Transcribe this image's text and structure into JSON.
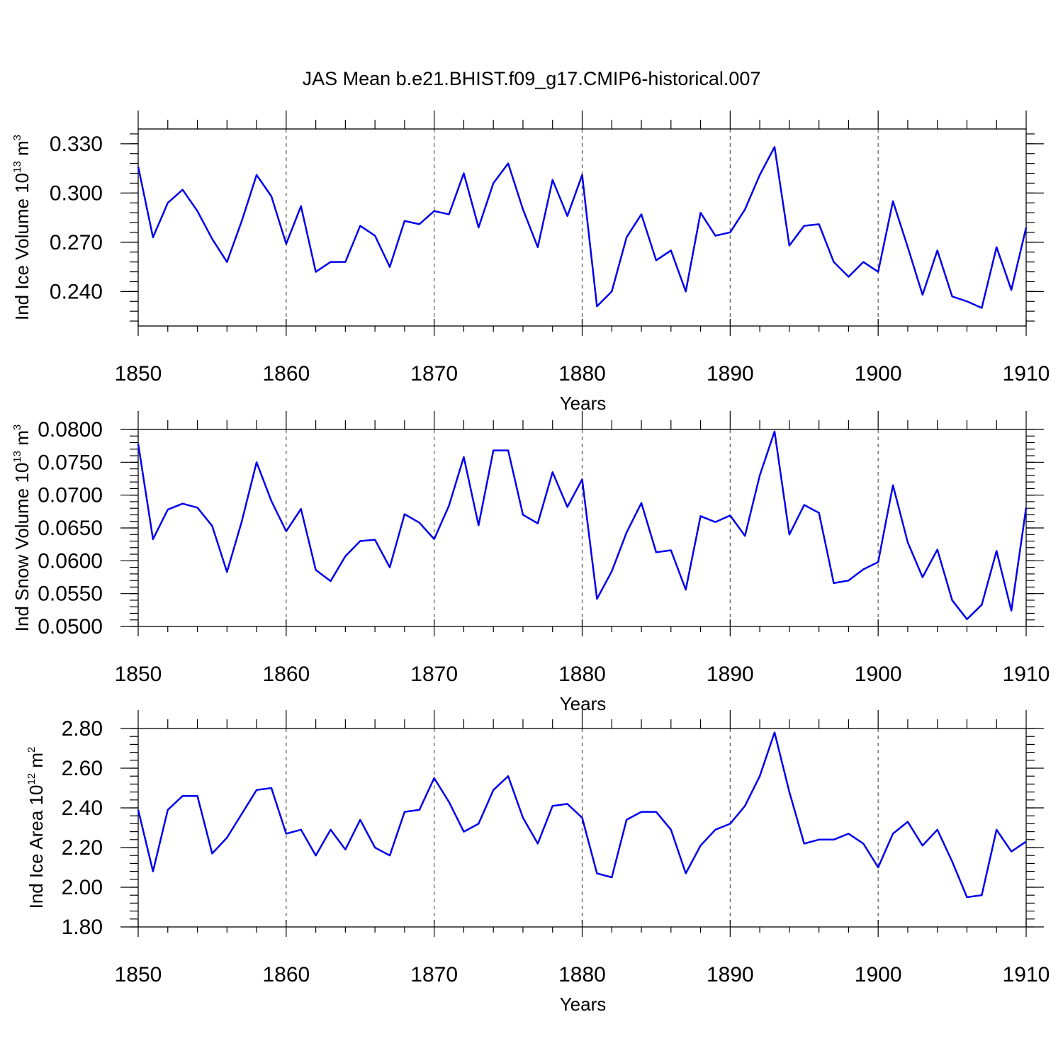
{
  "figure_title": "JAS Mean b.e21.BHIST.f09_g17.CMIP6-historical.007",
  "colors": {
    "line": "#0000ee",
    "axis": "#000000",
    "grid": "#555555"
  },
  "chart_data": [
    {
      "id": "ice-volume",
      "type": "line",
      "title": "JAS Mean b.e21.BHIST.f09_g17.CMIP6-historical.007",
      "xlabel": "Years",
      "ylabel": {
        "main": "Ind Ice Volume 10",
        "exp": "13",
        "unit": " m",
        "unit_exp": "3"
      },
      "xlim": [
        1850,
        1910
      ],
      "ylim": [
        0.219,
        0.339
      ],
      "x_ticks": [
        1850,
        1860,
        1870,
        1880,
        1890,
        1900,
        1910
      ],
      "x_tick_labels": [
        "1850",
        "1860",
        "1870",
        "1880",
        "1890",
        "1900",
        "1910"
      ],
      "y_ticks": [
        0.24,
        0.27,
        0.3,
        0.33
      ],
      "y_tick_labels": [
        "0.240",
        "0.270",
        "0.300",
        "0.330"
      ],
      "y_minor_step": 0.006,
      "grid_x": [
        1860,
        1870,
        1880,
        1890,
        1900
      ],
      "series": [
        {
          "name": "Ind Ice Volume",
          "x_start": 1850,
          "values": [
            0.316,
            0.273,
            0.294,
            0.302,
            0.289,
            0.272,
            0.258,
            0.283,
            0.311,
            0.298,
            0.269,
            0.292,
            0.252,
            0.258,
            0.258,
            0.28,
            0.274,
            0.255,
            0.283,
            0.281,
            0.289,
            0.287,
            0.312,
            0.279,
            0.306,
            0.318,
            0.29,
            0.267,
            0.308,
            0.286,
            0.311,
            0.231,
            0.24,
            0.273,
            0.287,
            0.259,
            0.265,
            0.24,
            0.288,
            0.274,
            0.276,
            0.29,
            0.311,
            0.328,
            0.268,
            0.28,
            0.281,
            0.258,
            0.249,
            0.258,
            0.252,
            0.295,
            0.267,
            0.238,
            0.265,
            0.237,
            0.234,
            0.23,
            0.267,
            0.241,
            0.279
          ]
        }
      ]
    },
    {
      "id": "snow-volume",
      "type": "line",
      "title": "",
      "xlabel": "Years",
      "ylabel": {
        "main": "Ind Snow Volume 10",
        "exp": "13",
        "unit": " m",
        "unit_exp": "3"
      },
      "xlim": [
        1850,
        1910
      ],
      "ylim": [
        0.05,
        0.08
      ],
      "x_ticks": [
        1850,
        1860,
        1870,
        1880,
        1890,
        1900,
        1910
      ],
      "x_tick_labels": [
        "1850",
        "1860",
        "1870",
        "1880",
        "1890",
        "1900",
        "1910"
      ],
      "y_ticks": [
        0.05,
        0.055,
        0.06,
        0.065,
        0.07,
        0.075,
        0.08
      ],
      "y_tick_labels": [
        "0.0500",
        "0.0550",
        "0.0600",
        "0.0650",
        "0.0700",
        "0.0750",
        "0.0800"
      ],
      "y_minor_step": 0.001,
      "grid_x": [
        1860,
        1870,
        1880,
        1890,
        1900
      ],
      "series": [
        {
          "name": "Ind Snow Volume",
          "x_start": 1850,
          "values": [
            0.0778,
            0.0633,
            0.0678,
            0.0687,
            0.0681,
            0.0653,
            0.0583,
            0.066,
            0.075,
            0.0691,
            0.0645,
            0.0679,
            0.0586,
            0.0569,
            0.0607,
            0.063,
            0.0632,
            0.059,
            0.0671,
            0.0658,
            0.0633,
            0.0684,
            0.0758,
            0.0654,
            0.0768,
            0.0768,
            0.067,
            0.0657,
            0.0735,
            0.0682,
            0.0724,
            0.0542,
            0.0584,
            0.0643,
            0.0688,
            0.0613,
            0.0616,
            0.0556,
            0.0668,
            0.0659,
            0.0669,
            0.0638,
            0.073,
            0.0797,
            0.064,
            0.0685,
            0.0673,
            0.0566,
            0.057,
            0.0587,
            0.0598,
            0.0715,
            0.0628,
            0.0575,
            0.0617,
            0.054,
            0.0511,
            0.0533,
            0.0615,
            0.0524,
            0.0681
          ]
        }
      ]
    },
    {
      "id": "ice-area",
      "type": "line",
      "title": "",
      "xlabel": "Years",
      "ylabel": {
        "main": "Ind Ice Area 10",
        "exp": "12",
        "unit": " m",
        "unit_exp": "2"
      },
      "xlim": [
        1850,
        1910
      ],
      "ylim": [
        1.8,
        2.8
      ],
      "x_ticks": [
        1850,
        1860,
        1870,
        1880,
        1890,
        1900,
        1910
      ],
      "x_tick_labels": [
        "1850",
        "1860",
        "1870",
        "1880",
        "1890",
        "1900",
        "1910"
      ],
      "y_ticks": [
        1.8,
        2.0,
        2.2,
        2.4,
        2.6,
        2.8
      ],
      "y_tick_labels": [
        "1.80",
        "2.00",
        "2.20",
        "2.40",
        "2.60",
        "2.80"
      ],
      "y_minor_step": 0.04,
      "grid_x": [
        1860,
        1870,
        1880,
        1890,
        1900
      ],
      "series": [
        {
          "name": "Ind Ice Area",
          "x_start": 1850,
          "values": [
            2.39,
            2.08,
            2.39,
            2.46,
            2.46,
            2.17,
            2.25,
            2.37,
            2.49,
            2.5,
            2.27,
            2.29,
            2.16,
            2.29,
            2.19,
            2.34,
            2.2,
            2.16,
            2.38,
            2.39,
            2.55,
            2.43,
            2.28,
            2.32,
            2.49,
            2.56,
            2.35,
            2.22,
            2.41,
            2.42,
            2.35,
            2.07,
            2.05,
            2.34,
            2.38,
            2.38,
            2.29,
            2.07,
            2.21,
            2.29,
            2.32,
            2.41,
            2.56,
            2.78,
            2.48,
            2.22,
            2.24,
            2.24,
            2.27,
            2.22,
            2.1,
            2.27,
            2.33,
            2.21,
            2.29,
            2.13,
            1.95,
            1.96,
            2.29,
            2.18,
            2.23
          ]
        }
      ]
    }
  ]
}
